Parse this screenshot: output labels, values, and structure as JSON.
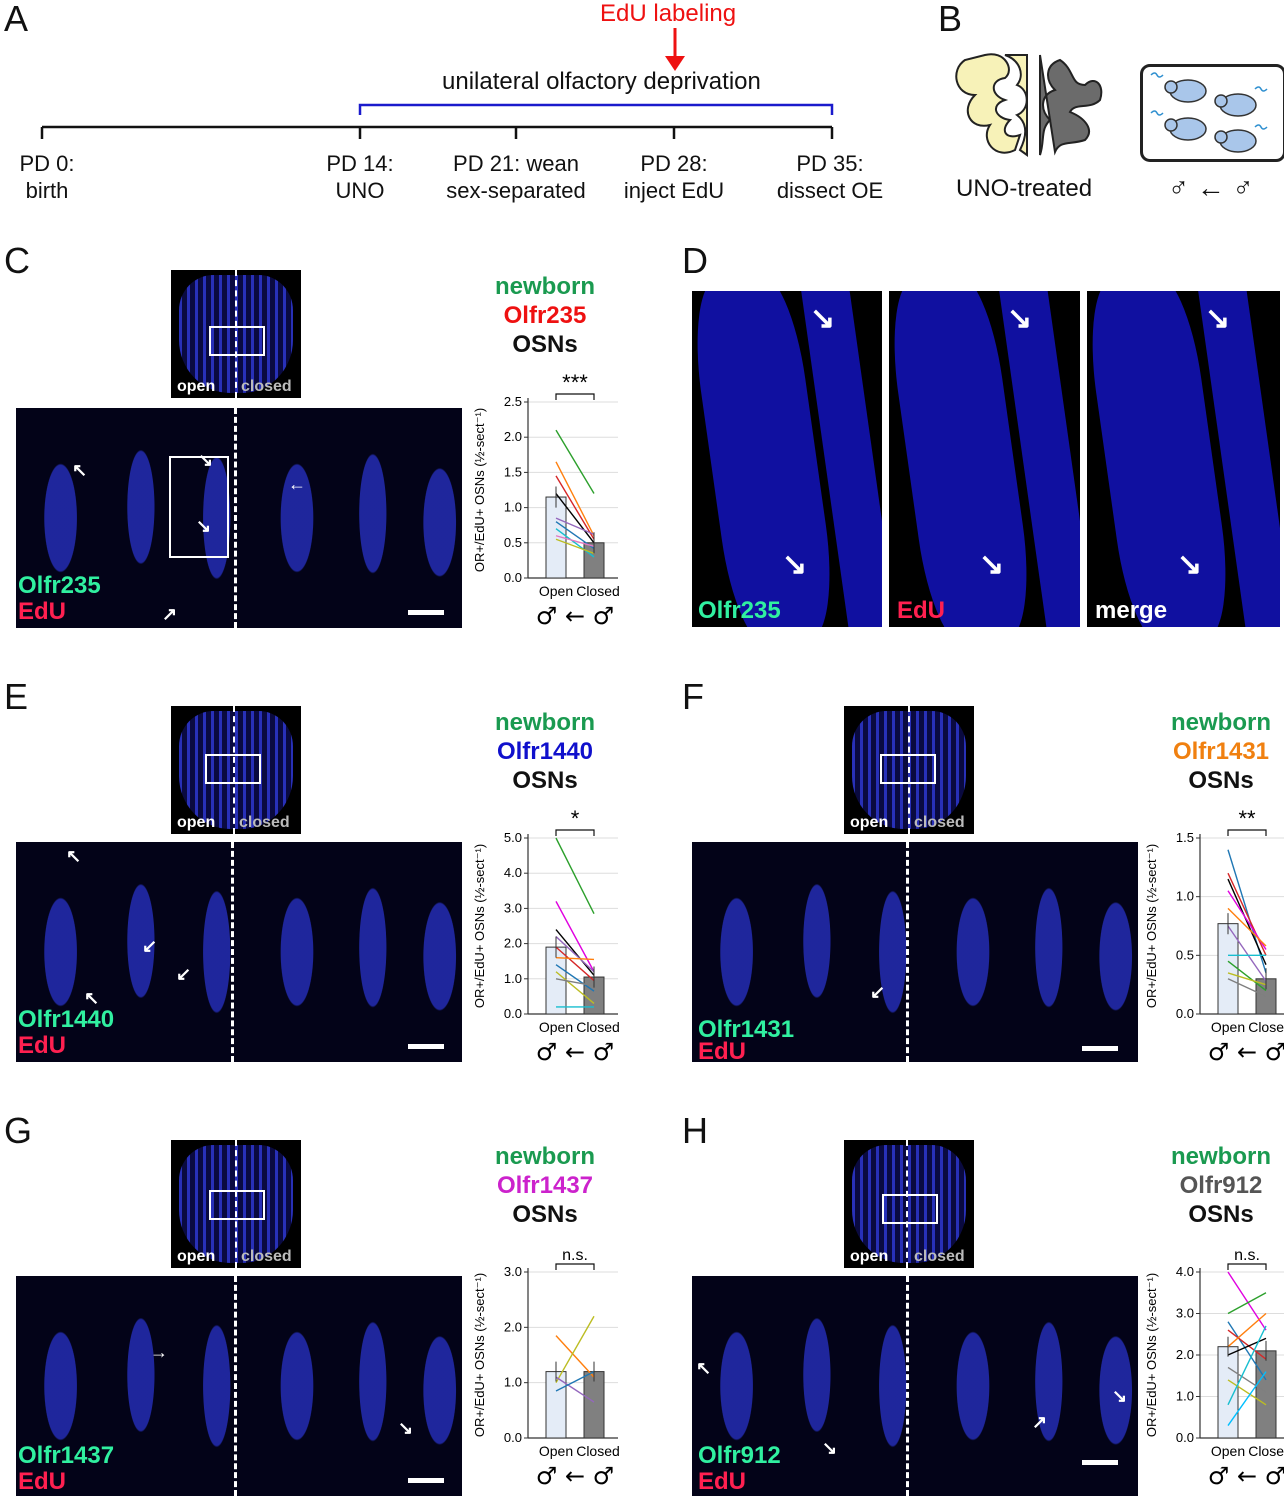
{
  "panels": {
    "A": "A",
    "B": "B",
    "C": "C",
    "D": "D",
    "E": "E",
    "F": "F",
    "G": "G",
    "H": "H"
  },
  "timeline": {
    "edu_label": "EdU labeling",
    "uno_label": "unilateral olfactory deprivation",
    "ticks": [
      {
        "l1": "PD 0:",
        "l2": "birth"
      },
      {
        "l1": "PD 14:",
        "l2": "UNO"
      },
      {
        "l1": "PD 21: wean",
        "l2": "sex-separated"
      },
      {
        "l1": "PD 28:",
        "l2": "inject EdU"
      },
      {
        "l1": "PD 35:",
        "l2": "dissect OE"
      }
    ]
  },
  "panelB": {
    "uno_treated": "UNO-treated",
    "housing": "♂ ← ♂"
  },
  "colors": {
    "green": "#1a9a50",
    "red": "#ee1111",
    "blue": "#1010cc",
    "orange": "#f08010",
    "magenta": "#cc22cc",
    "gray": "#555555",
    "edu_red": "#ff2050",
    "or_green": "#30f0a0"
  },
  "micro_labels": {
    "open": "open",
    "closed": "closed",
    "edu": "EdU",
    "merge": "merge"
  },
  "sections": {
    "C": {
      "or": "Olfr235",
      "title1": "newborn",
      "title3": "OSNs"
    },
    "E": {
      "or": "Olfr1440",
      "title1": "newborn",
      "title3": "OSNs"
    },
    "F": {
      "or": "Olfr1431",
      "title1": "newborn",
      "title3": "OSNs"
    },
    "G": {
      "or": "Olfr1437",
      "title1": "newborn",
      "title3": "OSNs"
    },
    "H": {
      "or": "Olfr912",
      "title1": "newborn",
      "title3": "OSNs"
    }
  },
  "panelD": {
    "or": "Olfr235"
  },
  "chart_data": [
    {
      "panel": "C",
      "type": "bar",
      "categories": [
        "Open",
        "Closed"
      ],
      "values": [
        1.15,
        0.5
      ],
      "ylabel": "OR+/EdU+ OSNs (½-sect⁻¹)",
      "ylim": [
        0,
        2.5
      ],
      "yticks": [
        "0.0",
        "0.5",
        "1.0",
        "1.5",
        "2.0",
        "2.5"
      ],
      "significance": "***",
      "xcaption": "♂ ← ♂",
      "lines": [
        {
          "open": 2.1,
          "closed": 1.2,
          "color": "#2ca02c"
        },
        {
          "open": 1.65,
          "closed": 0.6,
          "color": "#ff7f0e"
        },
        {
          "open": 1.45,
          "closed": 0.55,
          "color": "#d62728"
        },
        {
          "open": 1.2,
          "closed": 0.5,
          "color": "#000000"
        },
        {
          "open": 0.85,
          "closed": 0.62,
          "color": "#9467bd"
        },
        {
          "open": 0.8,
          "closed": 0.42,
          "color": "#1f77b4"
        },
        {
          "open": 0.7,
          "closed": 0.3,
          "color": "#17becf"
        },
        {
          "open": 0.6,
          "closed": 0.45,
          "color": "#e377c2"
        },
        {
          "open": 0.55,
          "closed": 0.35,
          "color": "#bcbd22"
        }
      ]
    },
    {
      "panel": "E",
      "type": "bar",
      "categories": [
        "Open",
        "Closed"
      ],
      "values": [
        1.9,
        1.05
      ],
      "ylabel": "OR+/EdU+ OSNs (½-sect⁻¹)",
      "ylim": [
        0,
        5.0
      ],
      "yticks": [
        "0.0",
        "1.0",
        "2.0",
        "3.0",
        "4.0",
        "5.0"
      ],
      "significance": "*",
      "xcaption": "♂ ← ♂",
      "lines": [
        {
          "open": 5.0,
          "closed": 2.85,
          "color": "#2ca02c"
        },
        {
          "open": 3.2,
          "closed": 1.2,
          "color": "#e000e0"
        },
        {
          "open": 2.4,
          "closed": 1.1,
          "color": "#000000"
        },
        {
          "open": 2.2,
          "closed": 1.2,
          "color": "#9467bd"
        },
        {
          "open": 1.9,
          "closed": 0.95,
          "color": "#d62728"
        },
        {
          "open": 1.6,
          "closed": 1.55,
          "color": "#ff7f0e"
        },
        {
          "open": 1.4,
          "closed": 0.65,
          "color": "#1f77b4"
        },
        {
          "open": 1.2,
          "closed": 0.3,
          "color": "#bcbd22"
        },
        {
          "open": 1.0,
          "closed": 0.8,
          "color": "#7f7f7f"
        },
        {
          "open": 0.2,
          "closed": 0.2,
          "color": "#17becf"
        }
      ]
    },
    {
      "panel": "F",
      "type": "bar",
      "categories": [
        "Open",
        "Closed"
      ],
      "values": [
        0.77,
        0.3
      ],
      "ylabel": "OR+/EdU+ OSNs (½-sect⁻¹)",
      "ylim": [
        0,
        1.5
      ],
      "yticks": [
        "0.0",
        "0.5",
        "1.0",
        "1.5"
      ],
      "significance": "**",
      "xcaption": "♂ ← ♂",
      "lines": [
        {
          "open": 1.4,
          "closed": 0.35,
          "color": "#1f77b4"
        },
        {
          "open": 1.2,
          "closed": 0.5,
          "color": "#d62728"
        },
        {
          "open": 1.15,
          "closed": 0.42,
          "color": "#000000"
        },
        {
          "open": 1.05,
          "closed": 0.55,
          "color": "#e000e0"
        },
        {
          "open": 0.9,
          "closed": 0.58,
          "color": "#ff7f0e"
        },
        {
          "open": 0.75,
          "closed": 0.28,
          "color": "#9467bd"
        },
        {
          "open": 0.5,
          "closed": 0.5,
          "color": "#17becf"
        },
        {
          "open": 0.45,
          "closed": 0.2,
          "color": "#2ca02c"
        },
        {
          "open": 0.35,
          "closed": 0.25,
          "color": "#bcbd22"
        },
        {
          "open": 0.3,
          "closed": 0.15,
          "color": "#7f7f7f"
        }
      ]
    },
    {
      "panel": "G",
      "type": "bar",
      "categories": [
        "Open",
        "Closed"
      ],
      "values": [
        1.2,
        1.2
      ],
      "ylabel": "OR+/EdU+ OSNs (½-sect⁻¹)",
      "ylim": [
        0,
        3.0
      ],
      "yticks": [
        "0.0",
        "1.0",
        "2.0",
        "3.0"
      ],
      "significance": "n.s.",
      "xcaption": "♂ ← ♂",
      "lines": [
        {
          "open": 1.85,
          "closed": 1.1,
          "color": "#ff7f0e"
        },
        {
          "open": 1.0,
          "closed": 2.2,
          "color": "#bcbd22"
        },
        {
          "open": 1.1,
          "closed": 0.65,
          "color": "#9467bd"
        },
        {
          "open": 0.85,
          "closed": 1.2,
          "color": "#1f77b4"
        }
      ]
    },
    {
      "panel": "H",
      "type": "bar",
      "categories": [
        "Open",
        "Closed"
      ],
      "values": [
        2.2,
        2.1
      ],
      "ylabel": "OR+/EdU+ OSNs (½-sect⁻¹)",
      "ylim": [
        0,
        4.0
      ],
      "yticks": [
        "0.0",
        "1.0",
        "2.0",
        "3.0",
        "4.0"
      ],
      "significance": "n.s.",
      "xcaption": "♂ ← ♂",
      "lines": [
        {
          "open": 4.0,
          "closed": 2.6,
          "color": "#e000e0"
        },
        {
          "open": 3.0,
          "closed": 3.5,
          "color": "#2ca02c"
        },
        {
          "open": 2.8,
          "closed": 1.4,
          "color": "#1f77b4"
        },
        {
          "open": 2.6,
          "closed": 1.9,
          "color": "#d62728"
        },
        {
          "open": 2.2,
          "closed": 3.0,
          "color": "#ff7f0e"
        },
        {
          "open": 2.0,
          "closed": 2.4,
          "color": "#000000"
        },
        {
          "open": 1.7,
          "closed": 1.1,
          "color": "#7f7f7f"
        },
        {
          "open": 1.4,
          "closed": 0.8,
          "color": "#bcbd22"
        },
        {
          "open": 0.8,
          "closed": 2.7,
          "color": "#17becf"
        },
        {
          "open": 0.3,
          "closed": 1.6,
          "color": "#00bfff"
        }
      ]
    }
  ]
}
